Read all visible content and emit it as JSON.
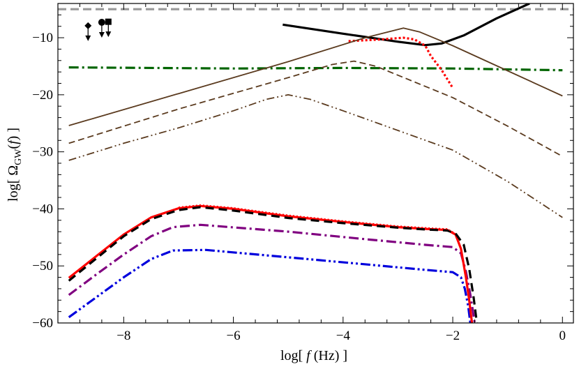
{
  "chart_data": {
    "type": "line",
    "title": "",
    "xlabel": "log[ f (Hz) ]",
    "ylabel": "log[ Ω_GW(f) ]",
    "xlabel_parts": {
      "pre": "log[ ",
      "var": "f",
      "post": " (Hz) ]"
    },
    "ylabel_parts": {
      "pre": "log[ Ω",
      "sub": "GW",
      "open": "(",
      "var": "f",
      "post": ") ]"
    },
    "xlim": [
      -9.2,
      0.2
    ],
    "ylim": [
      -60,
      -4
    ],
    "x_ticks": [
      -8,
      -6,
      -4,
      -2,
      0
    ],
    "x_tick_labels": [
      "−8",
      "−6",
      "−4",
      "−2",
      "0"
    ],
    "y_ticks": [
      -10,
      -20,
      -30,
      -40,
      -50,
      -60
    ],
    "y_tick_labels": [
      "−10",
      "−20",
      "−30",
      "−40",
      "−50",
      "−60"
    ],
    "grid": false,
    "legend": "none",
    "series": [
      {
        "color": "#999999",
        "dash": "12,6",
        "width": 3.2,
        "points": [
          [
            -9.2,
            -5
          ],
          [
            0.2,
            -5
          ]
        ]
      },
      {
        "color": "#006400",
        "dash": "14,5,3,5",
        "width": 3.2,
        "points": [
          [
            -9,
            -15.2
          ],
          [
            -6,
            -15.4
          ],
          [
            -4,
            -15.3
          ],
          [
            -2,
            -15.4
          ],
          [
            0,
            -15.7
          ]
        ]
      },
      {
        "color": "#000000",
        "dash": "",
        "width": 3.2,
        "points": [
          [
            -5.1,
            -7.7
          ],
          [
            -4,
            -9.3
          ],
          [
            -3,
            -10.7
          ],
          [
            -2.5,
            -11.3
          ],
          [
            -2.2,
            -11.0
          ],
          [
            -1.8,
            -9.6
          ],
          [
            -1.2,
            -6.6
          ],
          [
            -0.6,
            -4
          ]
        ]
      },
      {
        "color": "#ff0000",
        "dash": "3,3",
        "width": 3.2,
        "points": [
          [
            -3.9,
            -10.6
          ],
          [
            -3.3,
            -10.3
          ],
          [
            -2.9,
            -10.0
          ],
          [
            -2.7,
            -10.3
          ],
          [
            -2.5,
            -11.4
          ],
          [
            -2.4,
            -13.2
          ],
          [
            -2.2,
            -15.7
          ],
          [
            -2.0,
            -18.8
          ]
        ]
      },
      {
        "color": "#5a3a1e",
        "dash": "",
        "width": 1.8,
        "points": [
          [
            -9,
            -25.4
          ],
          [
            -7,
            -19.8
          ],
          [
            -5,
            -14.2
          ],
          [
            -3.6,
            -10.0
          ],
          [
            -2.9,
            -8.3
          ],
          [
            -2.6,
            -9.0
          ],
          [
            -2,
            -11.4
          ],
          [
            -1,
            -15.8
          ],
          [
            0,
            -20.2
          ]
        ]
      },
      {
        "color": "#5a3a1e",
        "dash": "9,5",
        "width": 1.8,
        "points": [
          [
            -9,
            -28.5
          ],
          [
            -7,
            -22.5
          ],
          [
            -5,
            -17.0
          ],
          [
            -4.2,
            -14.7
          ],
          [
            -3.8,
            -14.1
          ],
          [
            -3.4,
            -15.0
          ],
          [
            -2,
            -20.5
          ],
          [
            -1,
            -25.5
          ],
          [
            0,
            -30.8
          ]
        ]
      },
      {
        "color": "#5a3a1e",
        "dash": "11,4,2,4,2,4",
        "width": 1.8,
        "points": [
          [
            -9,
            -31.5
          ],
          [
            -8,
            -28.5
          ],
          [
            -7,
            -25.8
          ],
          [
            -6,
            -22.8
          ],
          [
            -5.4,
            -20.8
          ],
          [
            -5.0,
            -20.0
          ],
          [
            -4.6,
            -20.8
          ],
          [
            -4,
            -22.8
          ],
          [
            -2,
            -29.7
          ],
          [
            -1,
            -35.2
          ],
          [
            0,
            -41.5
          ]
        ]
      },
      {
        "color": "#0000dd",
        "dash": "14,4,3,4,3,4",
        "width": 3.2,
        "points": [
          [
            -9,
            -59
          ],
          [
            -8.5,
            -55.5
          ],
          [
            -8,
            -52.0
          ],
          [
            -7.5,
            -48.8
          ],
          [
            -7.1,
            -47.3
          ],
          [
            -6.5,
            -47.2
          ],
          [
            -5,
            -48.5
          ],
          [
            -3.5,
            -49.8
          ],
          [
            -2.5,
            -50.7
          ],
          [
            -2.0,
            -51.1
          ],
          [
            -1.85,
            -52.0
          ],
          [
            -1.78,
            -54.0
          ],
          [
            -1.72,
            -57.0
          ],
          [
            -1.68,
            -60
          ]
        ]
      },
      {
        "color": "#800080",
        "dash": "14,5,3,5",
        "width": 3.2,
        "points": [
          [
            -9,
            -55.1
          ],
          [
            -8.5,
            -51.5
          ],
          [
            -8,
            -48.0
          ],
          [
            -7.5,
            -44.8
          ],
          [
            -7.1,
            -43.2
          ],
          [
            -6.6,
            -42.8
          ],
          [
            -5,
            -44.0
          ],
          [
            -3.5,
            -45.4
          ],
          [
            -2.5,
            -46.3
          ],
          [
            -2.0,
            -46.7
          ],
          [
            -1.85,
            -47.8
          ],
          [
            -1.76,
            -51.0
          ],
          [
            -1.68,
            -55.0
          ],
          [
            -1.6,
            -60
          ]
        ]
      },
      {
        "color": "#ff0000",
        "dash": "",
        "width": 3.2,
        "points": [
          [
            -9,
            -52.1
          ],
          [
            -8.5,
            -48.3
          ],
          [
            -8,
            -44.5
          ],
          [
            -7.5,
            -41.5
          ],
          [
            -7.0,
            -39.9
          ],
          [
            -6.6,
            -39.5
          ],
          [
            -6,
            -40.0
          ],
          [
            -5,
            -41.3
          ],
          [
            -4,
            -42.3
          ],
          [
            -3,
            -43.2
          ],
          [
            -2.5,
            -43.5
          ],
          [
            -2.1,
            -43.7
          ],
          [
            -1.95,
            -44.5
          ],
          [
            -1.85,
            -47.0
          ],
          [
            -1.76,
            -52.0
          ],
          [
            -1.7,
            -56.0
          ],
          [
            -1.65,
            -60
          ]
        ]
      },
      {
        "color": "#000000",
        "dash": "12,7",
        "width": 3.2,
        "points": [
          [
            -9,
            -52.6
          ],
          [
            -8.5,
            -48.7
          ],
          [
            -8,
            -44.8
          ],
          [
            -7.5,
            -41.8
          ],
          [
            -7.0,
            -40.2
          ],
          [
            -6.6,
            -39.7
          ],
          [
            -6,
            -40.3
          ],
          [
            -5,
            -41.6
          ],
          [
            -4,
            -42.5
          ],
          [
            -3,
            -43.3
          ],
          [
            -2.5,
            -43.6
          ],
          [
            -2.1,
            -43.8
          ],
          [
            -1.95,
            -44.3
          ],
          [
            -1.8,
            -46.3
          ],
          [
            -1.7,
            -50.5
          ],
          [
            -1.62,
            -55.5
          ],
          [
            -1.56,
            -60
          ]
        ]
      },
      {
        "color": "#ff0000",
        "dash": "2,3",
        "width": 1.6,
        "points": [
          [
            -7.0,
            -39.7
          ],
          [
            -6.6,
            -39.3
          ],
          [
            -6,
            -39.8
          ],
          [
            -5,
            -41.1
          ],
          [
            -4,
            -42.1
          ],
          [
            -3,
            -43.0
          ],
          [
            -2.5,
            -43.3
          ],
          [
            -2.1,
            -43.5
          ],
          [
            -1.95,
            -44.3
          ]
        ]
      }
    ],
    "markers": [
      {
        "shape": "diamond",
        "x": -8.65,
        "y": -7.9
      },
      {
        "shape": "circle",
        "x": -8.4,
        "y": -7.3
      },
      {
        "shape": "square",
        "x": -8.28,
        "y": -7.2
      }
    ]
  }
}
